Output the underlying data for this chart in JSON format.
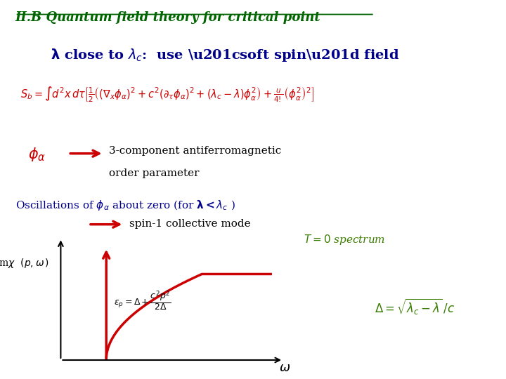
{
  "title": "II.B Quantum field theory for critical point",
  "background_color": "#ffffff",
  "action_text_1": "3-component antiferromagnetic",
  "action_text_2": "order parameter",
  "spin_mode_text": "spin-1 collective mode",
  "red_color": "#cc0000",
  "dark_green": "#006400",
  "blue_color": "#00008B",
  "olive_green": "#3a7d00",
  "black": "#000000"
}
